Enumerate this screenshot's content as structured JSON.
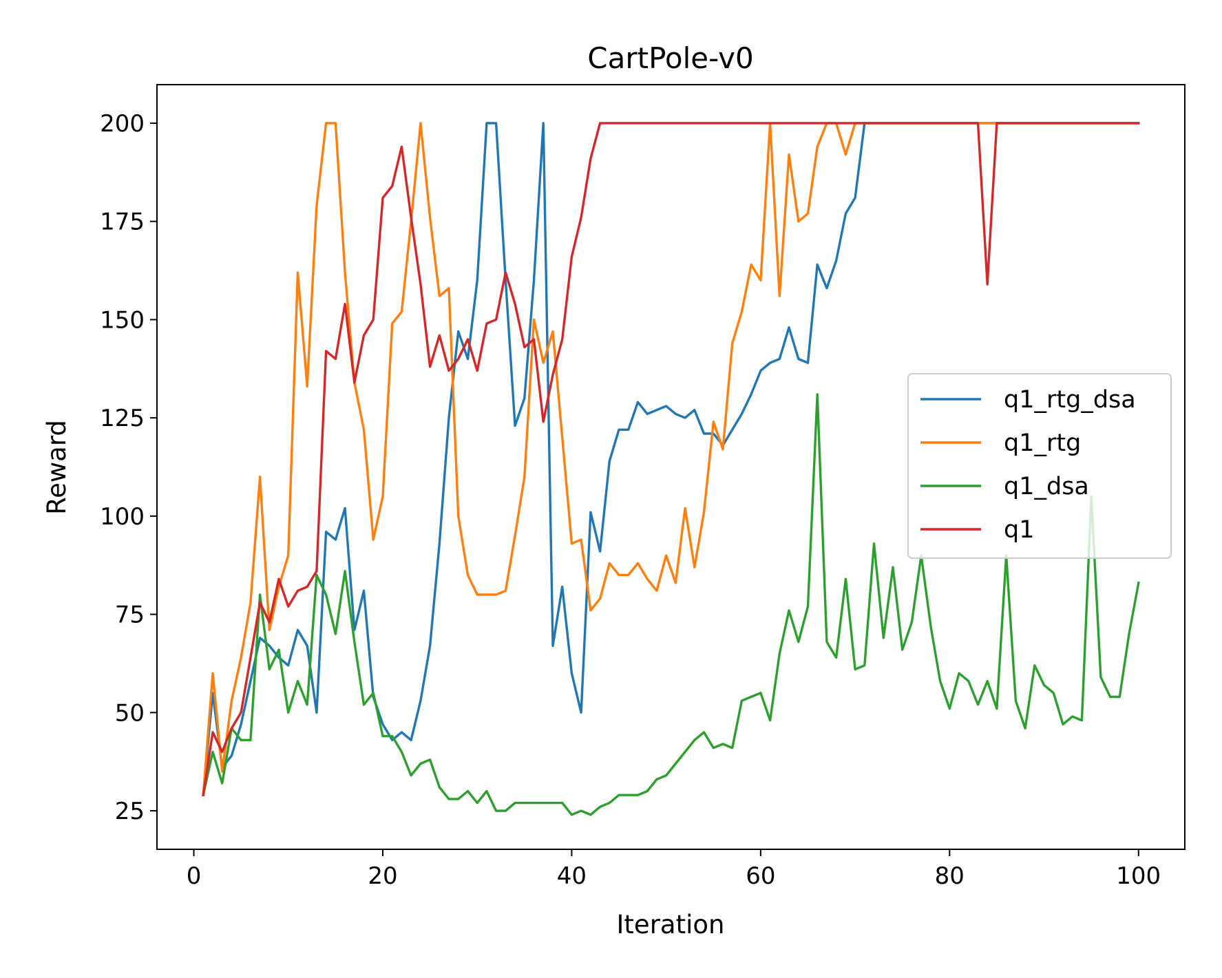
{
  "chart_data": {
    "type": "line",
    "title": "CartPole-v0",
    "xlabel": "Iteration",
    "ylabel": "Reward",
    "xlim": [
      -3.9,
      104.9
    ],
    "ylim": [
      15.2,
      209.8
    ],
    "xticks": [
      0,
      20,
      40,
      60,
      80,
      100
    ],
    "yticks": [
      25,
      50,
      75,
      100,
      125,
      150,
      175,
      200
    ],
    "grid": false,
    "legend_position": "center-right",
    "x": [
      1,
      2,
      3,
      4,
      5,
      6,
      7,
      8,
      9,
      10,
      11,
      12,
      13,
      14,
      15,
      16,
      17,
      18,
      19,
      20,
      21,
      22,
      23,
      24,
      25,
      26,
      27,
      28,
      29,
      30,
      31,
      32,
      33,
      34,
      35,
      36,
      37,
      38,
      39,
      40,
      41,
      42,
      43,
      44,
      45,
      46,
      47,
      48,
      49,
      50,
      51,
      52,
      53,
      54,
      55,
      56,
      57,
      58,
      59,
      60,
      61,
      62,
      63,
      64,
      65,
      66,
      67,
      68,
      69,
      70,
      71,
      72,
      73,
      74,
      75,
      76,
      77,
      78,
      79,
      80,
      81,
      82,
      83,
      84,
      85,
      86,
      87,
      88,
      89,
      90,
      91,
      92,
      93,
      94,
      95,
      96,
      97,
      98,
      99,
      100
    ],
    "series": [
      {
        "name": "q1_rtg_dsa",
        "color": "#1f77b4",
        "values": [
          29,
          55,
          36,
          39,
          47,
          58,
          69,
          67,
          64,
          62,
          71,
          67,
          50,
          96,
          94,
          102,
          71,
          81,
          54,
          47,
          43,
          45,
          43,
          53,
          67,
          93,
          125,
          147,
          140,
          160,
          200,
          200,
          160,
          123,
          130,
          160,
          200,
          67,
          82,
          60,
          50,
          101,
          91,
          114,
          122,
          122,
          129,
          126,
          127,
          128,
          126,
          125,
          127,
          121,
          121,
          118,
          122,
          126,
          131,
          137,
          139,
          140,
          148,
          140,
          139,
          164,
          158,
          165,
          177,
          181,
          200,
          200,
          200,
          200,
          200,
          200,
          200,
          200,
          200,
          200,
          200,
          200,
          200,
          200,
          200,
          200,
          200,
          200,
          200,
          200,
          200,
          200,
          200,
          200,
          200,
          200,
          200,
          200,
          200,
          200
        ]
      },
      {
        "name": "q1_rtg",
        "color": "#ff7f0e",
        "values": [
          29,
          60,
          35,
          53,
          64,
          78,
          110,
          71,
          82,
          90,
          162,
          133,
          179,
          200,
          200,
          162,
          134,
          122,
          94,
          105,
          149,
          152,
          175,
          200,
          176,
          156,
          158,
          100,
          85,
          80,
          80,
          80,
          81,
          95,
          110,
          150,
          139,
          147,
          120,
          93,
          94,
          76,
          79,
          88,
          85,
          85,
          88,
          84,
          81,
          90,
          83,
          102,
          87,
          101,
          124,
          117,
          144,
          152,
          164,
          160,
          200,
          156,
          192,
          175,
          177,
          194,
          200,
          200,
          192,
          200,
          200,
          200,
          200,
          200,
          200,
          200,
          200,
          200,
          200,
          200,
          200,
          200,
          200,
          200,
          200,
          200,
          200,
          200,
          200,
          200,
          200,
          200,
          200,
          200,
          200,
          200,
          200,
          200,
          200,
          200
        ]
      },
      {
        "name": "q1_dsa",
        "color": "#2ca02c",
        "values": [
          29,
          40,
          32,
          46,
          43,
          43,
          80,
          61,
          66,
          50,
          58,
          52,
          85,
          80,
          70,
          86,
          68,
          52,
          55,
          44,
          44,
          40,
          34,
          37,
          38,
          31,
          28,
          28,
          30,
          27,
          30,
          25,
          25,
          27,
          27,
          27,
          27,
          27,
          27,
          24,
          25,
          24,
          26,
          27,
          29,
          29,
          29,
          30,
          33,
          34,
          37,
          40,
          43,
          45,
          41,
          42,
          41,
          53,
          54,
          55,
          48,
          65,
          76,
          68,
          77,
          131,
          68,
          64,
          84,
          61,
          62,
          93,
          69,
          87,
          66,
          73,
          90,
          72,
          58,
          51,
          60,
          58,
          52,
          58,
          51,
          90,
          53,
          46,
          62,
          57,
          55,
          47,
          49,
          48,
          105,
          59,
          54,
          54,
          70,
          83
        ]
      },
      {
        "name": "q1",
        "color": "#d62728",
        "values": [
          29,
          45,
          40,
          46,
          50,
          64,
          78,
          73,
          84,
          77,
          81,
          82,
          86,
          142,
          140,
          154,
          134,
          146,
          150,
          181,
          184,
          194,
          176,
          159,
          138,
          146,
          137,
          140,
          145,
          137,
          149,
          150,
          162,
          154,
          143,
          145,
          124,
          136,
          145,
          166,
          176,
          191,
          200,
          200,
          200,
          200,
          200,
          200,
          200,
          200,
          200,
          200,
          200,
          200,
          200,
          200,
          200,
          200,
          200,
          200,
          200,
          200,
          200,
          200,
          200,
          200,
          200,
          200,
          200,
          200,
          200,
          200,
          200,
          200,
          200,
          200,
          200,
          200,
          200,
          200,
          200,
          200,
          200,
          159,
          200,
          200,
          200,
          200,
          200,
          200,
          200,
          200,
          200,
          200,
          200,
          200,
          200,
          200,
          200,
          200
        ]
      }
    ]
  }
}
